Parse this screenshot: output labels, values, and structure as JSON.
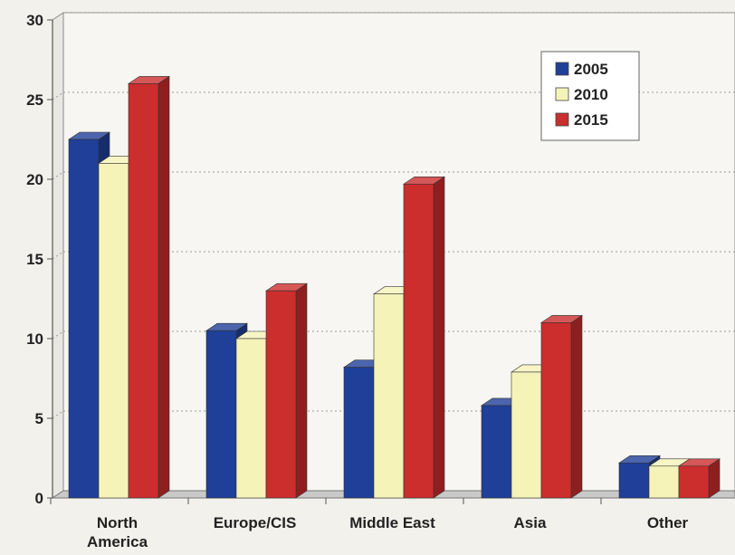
{
  "chart_data": {
    "type": "bar",
    "title": "",
    "xlabel": "",
    "ylabel": "",
    "categories": [
      [
        "North",
        "America"
      ],
      [
        "Europe/CIS"
      ],
      [
        "Middle East"
      ],
      [
        "Asia"
      ],
      [
        "Other"
      ]
    ],
    "series": [
      {
        "name": "2005",
        "color": "#1f3f99",
        "values": [
          22.5,
          10.5,
          8.2,
          5.8,
          2.2
        ]
      },
      {
        "name": "2010",
        "color": "#f5f3b8",
        "values": [
          21.0,
          10.0,
          12.8,
          7.9,
          2.0
        ]
      },
      {
        "name": "2015",
        "color": "#cc2d2d",
        "values": [
          26.0,
          13.0,
          19.7,
          11.0,
          2.0
        ]
      }
    ],
    "ylim": [
      0,
      30
    ],
    "yticks": [
      "0",
      "5",
      "10",
      "15",
      "20",
      "25",
      "30"
    ],
    "grid": true,
    "legend": "top-right"
  }
}
